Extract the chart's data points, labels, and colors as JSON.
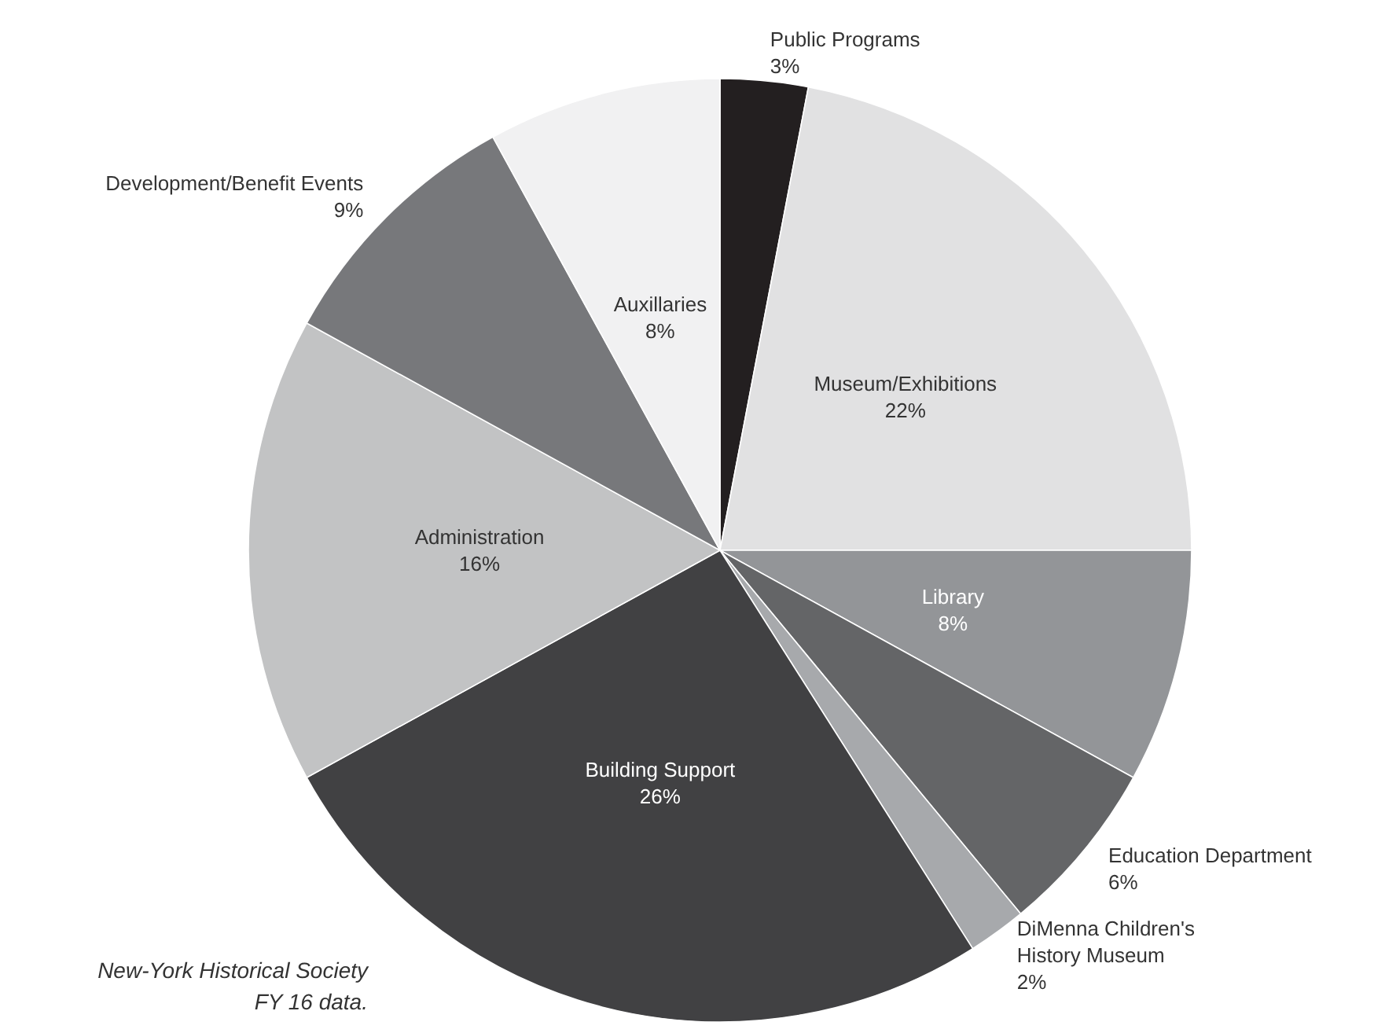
{
  "chart_data": {
    "type": "pie",
    "categories": [
      "Public Programs",
      "Museum/Exhibitions",
      "Library",
      "Education Department",
      "DiMenna Children's History Museum",
      "Building Support",
      "Administration",
      "Development/Benefit Events",
      "Auxillaries"
    ],
    "values": [
      3,
      22,
      8,
      6,
      2,
      26,
      16,
      9,
      8
    ],
    "value_labels": [
      "3%",
      "22%",
      "8%",
      "6%",
      "2%",
      "26%",
      "16%",
      "9%",
      "8%"
    ],
    "colors": [
      "#231f20",
      "#e1e1e2",
      "#939598",
      "#646567",
      "#a7a9ac",
      "#414143",
      "#c2c3c4",
      "#77787b",
      "#f1f1f2"
    ],
    "annotations": [
      "New-York Historical Society\nFY 16 data."
    ],
    "legend": false
  }
}
